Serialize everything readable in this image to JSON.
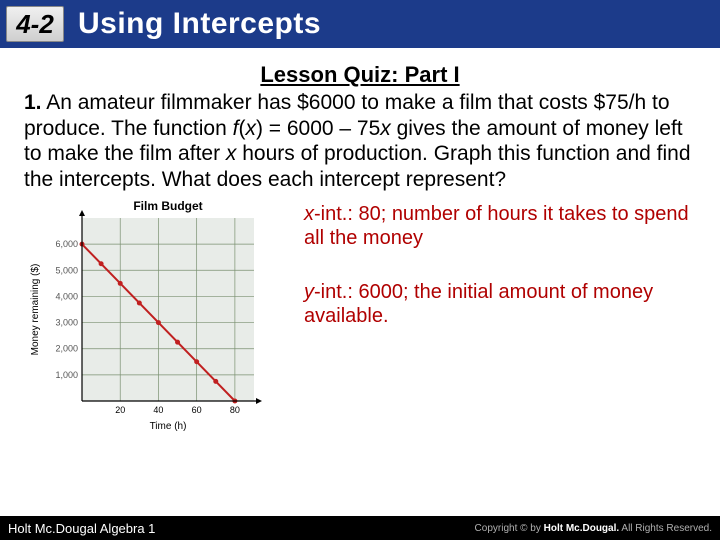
{
  "header": {
    "badge": "4-2",
    "title": "Using Intercepts"
  },
  "quiz_title": "Lesson Quiz: Part I",
  "question": {
    "num": "1.",
    "text_html": "An amateur filmmaker has $6000 to make a film that costs $75/h to produce. The function <span class='fx'>f</span>(<span class='fx'>x</span>) = 6000 – 75<span class='fx'>x</span> gives the amount of money left to make the film after <span class='fx'>x</span> hours of production. Graph this function and find the intercepts. What does each intercept represent?"
  },
  "chart": {
    "type": "line",
    "title": "Film Budget",
    "xlabel": "Time (h)",
    "ylabel": "Money remaining ($)",
    "xlim": [
      0,
      90
    ],
    "ylim": [
      0,
      7000
    ],
    "xticks": [
      20,
      40,
      60,
      80
    ],
    "yticks": [
      1000,
      2000,
      3000,
      4000,
      5000,
      6000
    ],
    "line_points": [
      [
        0,
        6000
      ],
      [
        80,
        0
      ]
    ],
    "markers": [
      [
        0,
        6000
      ],
      [
        10,
        5250
      ],
      [
        20,
        4500
      ],
      [
        30,
        3750
      ],
      [
        40,
        3000
      ],
      [
        50,
        2250
      ],
      [
        60,
        1500
      ],
      [
        70,
        750
      ],
      [
        80,
        0
      ]
    ],
    "background_color": "#e8ece8",
    "grid_color": "#7a9070",
    "line_color": "#c02020",
    "marker_color": "#c02020",
    "axis_color": "#000000",
    "title_fontsize": 12,
    "label_fontsize": 10,
    "tick_fontsize": 9
  },
  "answers": {
    "x_int_label": "x",
    "x_int_text": "-int.: 80; number of hours it takes to spend all the money",
    "y_int_label": "y",
    "y_int_text": "-int.: 6000; the initial amount of money available."
  },
  "footer": {
    "left": "Holt Mc.Dougal Algebra 1",
    "right_prefix": "Copyright © by ",
    "right_bold": "Holt Mc.Dougal.",
    "right_suffix": " All Rights Reserved."
  }
}
